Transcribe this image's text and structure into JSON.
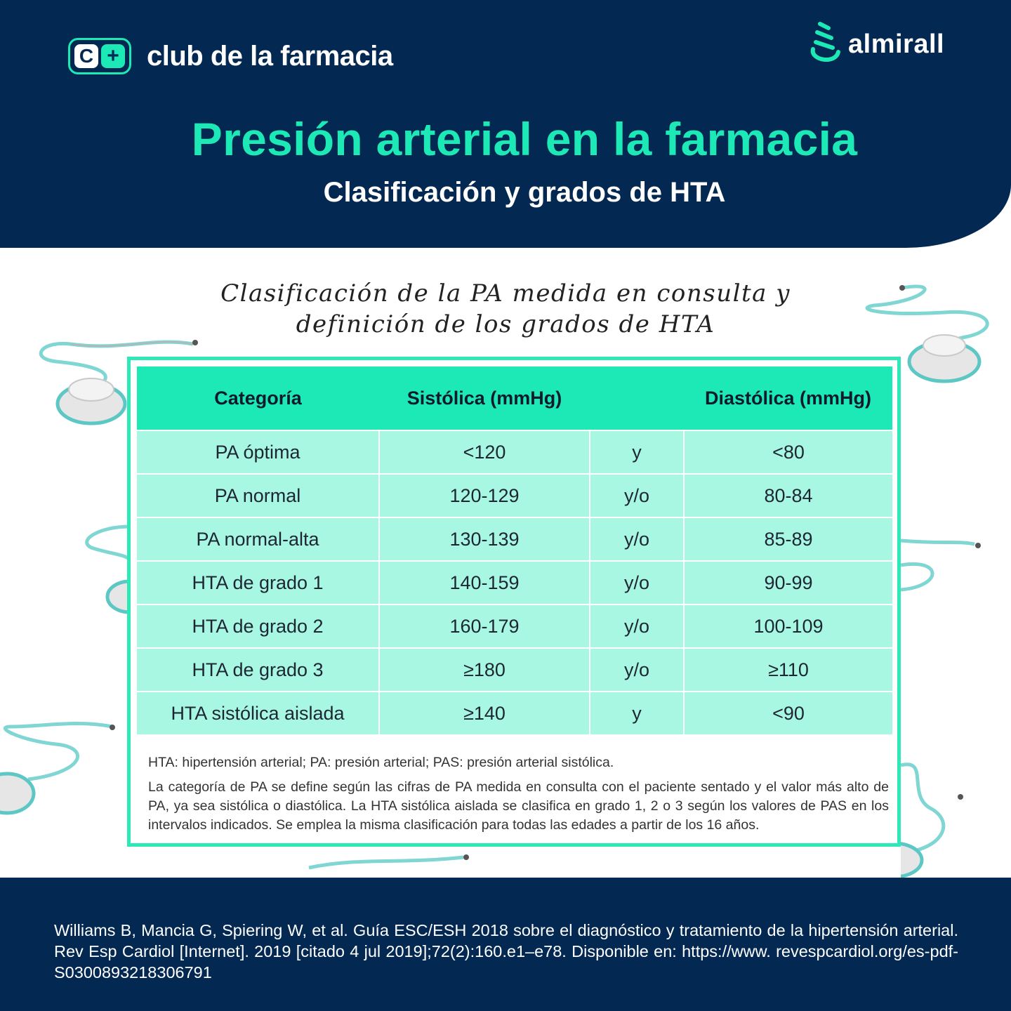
{
  "brand": {
    "club_logo_letter": "C",
    "club_logo_symbol": "+",
    "club_name": "club de la farmacia",
    "partner_name": "almirall"
  },
  "header": {
    "title": "Presión arterial en la farmacia",
    "subtitle": "Clasificación y grados de HTA"
  },
  "section_title": {
    "line1": "Clasificación de la PA medida en consulta y",
    "line2": "definición de los grados de HTA"
  },
  "table": {
    "headers": [
      "Categoría",
      "Sistólica (mmHg)",
      "",
      "Diastólica (mmHg)"
    ],
    "rows": [
      {
        "category": "PA óptima",
        "systolic": "<120",
        "connector": "y",
        "diastolic": "<80"
      },
      {
        "category": "PA normal",
        "systolic": "120-129",
        "connector": "y/o",
        "diastolic": "80-84"
      },
      {
        "category": "PA normal-alta",
        "systolic": "130-139",
        "connector": "y/o",
        "diastolic": "85-89"
      },
      {
        "category": "HTA de grado 1",
        "systolic": "140-159",
        "connector": "y/o",
        "diastolic": "90-99"
      },
      {
        "category": "HTA de grado 2",
        "systolic": "160-179",
        "connector": "y/o",
        "diastolic": "100-109"
      },
      {
        "category": "HTA de grado 3",
        "systolic": "≥180",
        "connector": "y/o",
        "diastolic": "≥110"
      },
      {
        "category": "HTA sistólica aislada",
        "systolic": "≥140",
        "connector": "y",
        "diastolic": "<90"
      }
    ]
  },
  "notes": {
    "abbreviations": "HTA: hipertensión arterial; PA: presión arterial; PAS: presión arterial sistólica.",
    "description": "La categoría de PA se define según las cifras de PA medida en consulta con el paciente sentado y el valor más alto de PA, ya sea sistólica o diastólica. La HTA sistólica aislada se clasifica en grado 1, 2 o 3 según los valores de PAS en los intervalos indicados. Se emplea la misma clasificación para todas las edades a partir de los 16 años."
  },
  "footer": {
    "reference": "Williams B, Mancia G, Spiering W, et al. Guía ESC/ESH 2018 sobre el diagnóstico y tratamiento de la hipertensión arterial. Rev Esp Cardiol [Internet]. 2019 [citado 4 jul 2019];72(2):160.e1–e78. Disponible en: https://www. revespcardiol.org/es-pdf-S0300893218306791"
  },
  "colors": {
    "navy": "#032852",
    "accent_mint": "#1de9b6",
    "row_mint": "#a8f7e3"
  },
  "icons": [
    "stethoscope-illustration",
    "almirall-logo-icon",
    "club-logo-icon"
  ]
}
